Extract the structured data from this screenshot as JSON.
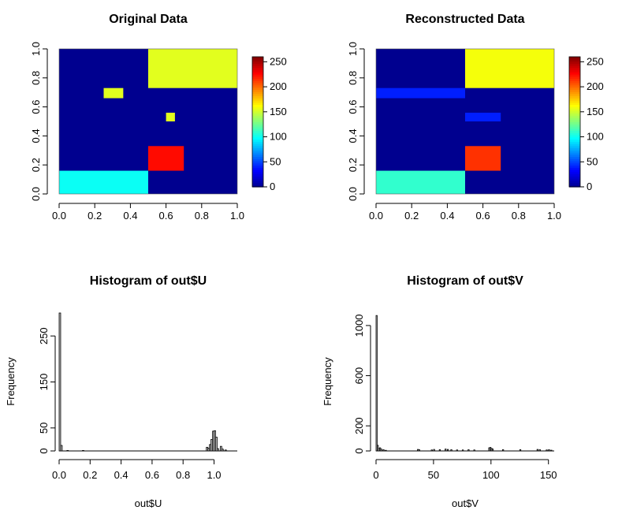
{
  "colorscale": [
    "#00008f",
    "#0000ff",
    "#0080ff",
    "#00ffff",
    "#80ff80",
    "#ffff00",
    "#ff8000",
    "#ff0000",
    "#800000"
  ],
  "chart_data": [
    {
      "type": "heatmap",
      "title": "Original Data",
      "xlim": [
        0,
        1
      ],
      "ylim": [
        0,
        1
      ],
      "xticks": [
        "0.0",
        "0.2",
        "0.4",
        "0.6",
        "0.8",
        "1.0"
      ],
      "yticks": [
        "0.0",
        "0.2",
        "0.4",
        "0.6",
        "0.8",
        "1.0"
      ],
      "zlim": [
        0,
        260
      ],
      "colorbar_ticks": [
        "0",
        "50",
        "100",
        "150",
        "200",
        "250"
      ],
      "background_value": 0,
      "blocks": [
        {
          "x": [
            0.5,
            1.0
          ],
          "y": [
            0.73,
            1.0
          ],
          "value": 155
        },
        {
          "x": [
            0.0,
            0.5
          ],
          "y": [
            0.0,
            0.16
          ],
          "value": 100
        },
        {
          "x": [
            0.5,
            0.7
          ],
          "y": [
            0.16,
            0.33
          ],
          "value": 225
        },
        {
          "x": [
            0.25,
            0.36
          ],
          "y": [
            0.66,
            0.73
          ],
          "value": 155
        },
        {
          "x": [
            0.6,
            0.65
          ],
          "y": [
            0.5,
            0.56
          ],
          "value": 155
        }
      ]
    },
    {
      "type": "heatmap",
      "title": "Reconstructed Data",
      "xlim": [
        0,
        1
      ],
      "ylim": [
        0,
        1
      ],
      "xticks": [
        "0.0",
        "0.2",
        "0.4",
        "0.6",
        "0.8",
        "1.0"
      ],
      "yticks": [
        "0.0",
        "0.2",
        "0.4",
        "0.6",
        "0.8",
        "1.0"
      ],
      "zlim": [
        0,
        260
      ],
      "colorbar_ticks": [
        "0",
        "50",
        "100",
        "150",
        "200",
        "250"
      ],
      "background_value": 0,
      "blocks": [
        {
          "x": [
            0.5,
            1.0
          ],
          "y": [
            0.73,
            1.0
          ],
          "value": 160
        },
        {
          "x": [
            0.0,
            0.5
          ],
          "y": [
            0.0,
            0.16
          ],
          "value": 110
        },
        {
          "x": [
            0.5,
            0.7
          ],
          "y": [
            0.16,
            0.33
          ],
          "value": 215
        },
        {
          "x": [
            0.0,
            0.5
          ],
          "y": [
            0.66,
            0.73
          ],
          "value": 40
        },
        {
          "x": [
            0.5,
            0.7
          ],
          "y": [
            0.5,
            0.56
          ],
          "value": 40
        }
      ]
    },
    {
      "type": "bar",
      "subtype": "histogram",
      "title": "Histogram of out$U",
      "xlabel": "out$U",
      "ylabel": "Frequency",
      "xlim": [
        0,
        1.15
      ],
      "ylim": [
        0,
        300
      ],
      "xticks": [
        "0.0",
        "0.2",
        "0.4",
        "0.6",
        "0.8",
        "1.0"
      ],
      "yticks": [
        "0",
        "50",
        "150",
        "250"
      ],
      "bin_width": 0.01,
      "bins": [
        {
          "x": 0.0,
          "count": 300
        },
        {
          "x": 0.01,
          "count": 12
        },
        {
          "x": 0.05,
          "count": 1
        },
        {
          "x": 0.15,
          "count": 1
        },
        {
          "x": 0.95,
          "count": 8
        },
        {
          "x": 0.96,
          "count": 6
        },
        {
          "x": 0.97,
          "count": 14
        },
        {
          "x": 0.98,
          "count": 25
        },
        {
          "x": 0.99,
          "count": 43
        },
        {
          "x": 1.0,
          "count": 44
        },
        {
          "x": 1.01,
          "count": 30
        },
        {
          "x": 1.02,
          "count": 5
        },
        {
          "x": 1.04,
          "count": 10
        },
        {
          "x": 1.05,
          "count": 4
        },
        {
          "x": 1.07,
          "count": 2
        }
      ]
    },
    {
      "type": "bar",
      "subtype": "histogram",
      "title": "Histogram of out$V",
      "xlabel": "out$V",
      "ylabel": "Frequency",
      "xlim": [
        0,
        155
      ],
      "ylim": [
        0,
        1100
      ],
      "xticks": [
        "0",
        "50",
        "100",
        "150"
      ],
      "yticks": [
        "0",
        "200",
        "600",
        "1000"
      ],
      "bin_width": 1,
      "bins": [
        {
          "x": 0,
          "count": 1080
        },
        {
          "x": 1,
          "count": 45
        },
        {
          "x": 2,
          "count": 20
        },
        {
          "x": 3,
          "count": 25
        },
        {
          "x": 4,
          "count": 15
        },
        {
          "x": 6,
          "count": 10
        },
        {
          "x": 8,
          "count": 5
        },
        {
          "x": 36,
          "count": 12
        },
        {
          "x": 37,
          "count": 10
        },
        {
          "x": 48,
          "count": 8
        },
        {
          "x": 50,
          "count": 12
        },
        {
          "x": 55,
          "count": 10
        },
        {
          "x": 60,
          "count": 15
        },
        {
          "x": 62,
          "count": 12
        },
        {
          "x": 65,
          "count": 10
        },
        {
          "x": 70,
          "count": 8
        },
        {
          "x": 75,
          "count": 8
        },
        {
          "x": 80,
          "count": 10
        },
        {
          "x": 85,
          "count": 8
        },
        {
          "x": 98,
          "count": 25
        },
        {
          "x": 99,
          "count": 28
        },
        {
          "x": 100,
          "count": 20
        },
        {
          "x": 101,
          "count": 15
        },
        {
          "x": 110,
          "count": 10
        },
        {
          "x": 125,
          "count": 10
        },
        {
          "x": 140,
          "count": 12
        },
        {
          "x": 142,
          "count": 10
        },
        {
          "x": 148,
          "count": 8
        },
        {
          "x": 150,
          "count": 10
        },
        {
          "x": 152,
          "count": 6
        }
      ]
    }
  ]
}
